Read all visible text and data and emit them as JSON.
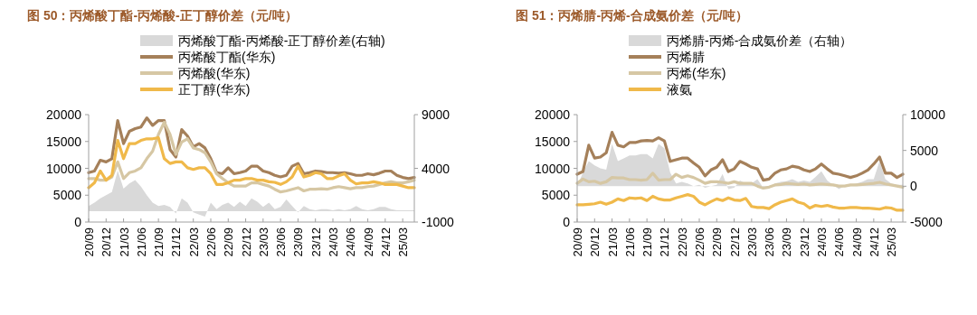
{
  "chart_data": [
    {
      "type": "line",
      "title": "图 50：丙烯酸丁酯-丙烯酸-正丁醇价差（元/吨）",
      "legend": "top",
      "grid": false,
      "categories": [
        "20/09",
        null,
        null,
        "20/12",
        null,
        null,
        "21/03",
        null,
        null,
        "21/06",
        null,
        null,
        "21/09",
        null,
        null,
        "21/12",
        null,
        null,
        "22/03",
        null,
        null,
        "22/06",
        null,
        null,
        "22/09",
        null,
        null,
        "22/12",
        null,
        null,
        "23/03",
        null,
        null,
        "23/06",
        null,
        null,
        "23/09",
        null,
        null,
        "23/12",
        null,
        null,
        "24/03",
        null,
        null,
        "24/06",
        null,
        null,
        "24/09",
        null,
        null,
        "24/12",
        null,
        null,
        "25/03",
        null,
        null
      ],
      "ylim": [
        0,
        20000
      ],
      "yticks": [
        0,
        5000,
        10000,
        15000,
        20000
      ],
      "y2lim": [
        -1000,
        9000
      ],
      "y2ticks": [
        -1000,
        4000,
        9000
      ],
      "series": [
        {
          "name": "丙烯酸丁酯-丙烯酸-正丁醇价差(右轴)",
          "type": "area",
          "axis": "y2",
          "color": "#d9d9d9",
          "values": [
            500,
            800,
            1200,
            1500,
            1800,
            3800,
            2100,
            2600,
            2900,
            2300,
            1500,
            800,
            500,
            600,
            400,
            -200,
            1200,
            800,
            -100,
            -300,
            -500,
            800,
            200,
            600,
            800,
            400,
            900,
            500,
            1200,
            900,
            400,
            800,
            200,
            400,
            1100,
            500,
            -100,
            500,
            200,
            100,
            200,
            200,
            100,
            200,
            100,
            200,
            500,
            200,
            100,
            200,
            400,
            400,
            200,
            100,
            100,
            100,
            100
          ]
        },
        {
          "name": "丙烯酸丁酯(华东)",
          "type": "line",
          "color": "#a5805a",
          "values": [
            9200,
            9500,
            11500,
            11200,
            11800,
            18900,
            14600,
            16900,
            17400,
            17700,
            19400,
            18000,
            18900,
            18900,
            13500,
            12100,
            17200,
            16000,
            14000,
            14600,
            13800,
            11800,
            9200,
            9000,
            10100,
            9000,
            9200,
            9500,
            10400,
            10400,
            9500,
            9200,
            8700,
            8400,
            8700,
            10400,
            10900,
            9000,
            9200,
            9500,
            9400,
            9200,
            9200,
            9100,
            9200,
            9000,
            8700,
            8700,
            9000,
            8800,
            9100,
            9500,
            9500,
            8700,
            8300,
            8100,
            8300
          ]
        },
        {
          "name": "丙烯酸(华东)",
          "type": "line",
          "color": "#d6c7a4",
          "values": [
            8100,
            8100,
            7800,
            7800,
            8400,
            11200,
            8100,
            9200,
            9500,
            10100,
            11800,
            13200,
            16300,
            18600,
            16300,
            12600,
            14900,
            15500,
            13800,
            13500,
            12900,
            11200,
            9000,
            8100,
            7300,
            6700,
            6700,
            6700,
            7300,
            7300,
            7000,
            6700,
            6100,
            5600,
            5800,
            6100,
            6400,
            5800,
            6100,
            6100,
            6200,
            6100,
            6400,
            6600,
            6400,
            6200,
            6400,
            6400,
            6600,
            6700,
            7000,
            7300,
            7500,
            7300,
            7300,
            7500,
            7800
          ]
        },
        {
          "name": "正丁醇(华东)",
          "type": "line",
          "color": "#f0b94a",
          "values": [
            6400,
            7300,
            9500,
            7800,
            8700,
            15200,
            11800,
            14600,
            14600,
            15200,
            15500,
            15500,
            15700,
            11800,
            10900,
            11200,
            11200,
            10100,
            9800,
            10100,
            10100,
            9000,
            7000,
            7000,
            7300,
            7800,
            7800,
            8100,
            8100,
            7800,
            7800,
            7500,
            7400,
            7000,
            7500,
            8400,
            10400,
            8400,
            8700,
            9200,
            9000,
            8100,
            8100,
            8600,
            9000,
            7800,
            7100,
            7300,
            7300,
            7500,
            7300,
            7000,
            7000,
            7000,
            6700,
            6400,
            6400
          ]
        }
      ]
    },
    {
      "type": "line",
      "title": "图 51：丙烯腈-丙烯-合成氨价差（元/吨）",
      "legend": "top",
      "grid": false,
      "categories": [
        "20/09",
        null,
        null,
        "20/12",
        null,
        null,
        "21/03",
        null,
        null,
        "21/06",
        null,
        null,
        "21/09",
        null,
        null,
        "21/12",
        null,
        null,
        "22/03",
        null,
        null,
        "22/06",
        null,
        null,
        "22/09",
        null,
        null,
        "22/12",
        null,
        null,
        "23/03",
        null,
        null,
        "23/06",
        null,
        null,
        "23/09",
        null,
        null,
        "23/12",
        null,
        null,
        "24/03",
        null,
        null,
        "24/06",
        null,
        null,
        "24/09",
        null,
        null,
        "24/12",
        null,
        null,
        "25/03",
        null,
        null
      ],
      "ylim": [
        0,
        20000
      ],
      "yticks": [
        0,
        5000,
        10000,
        15000,
        20000
      ],
      "y2lim": [
        -5000,
        10000
      ],
      "y2ticks": [
        -5000,
        0,
        5000,
        10000
      ],
      "series": [
        {
          "name": "丙烯腈-丙烯-合成氨价差（右轴）",
          "type": "area",
          "axis": "y2",
          "color": "#d9d9d9",
          "values": [
            0,
            1900,
            3500,
            2900,
            2500,
            2300,
            5900,
            3500,
            3900,
            4300,
            4300,
            4500,
            4500,
            3900,
            5900,
            5300,
            1900,
            400,
            600,
            400,
            0,
            200,
            -200,
            0,
            200,
            1700,
            -400,
            -200,
            800,
            400,
            400,
            1000,
            -200,
            -200,
            400,
            600,
            700,
            1000,
            600,
            800,
            600,
            1300,
            2100,
            800,
            200,
            -400,
            0,
            200,
            400,
            600,
            1000,
            1000,
            3500,
            1000,
            400,
            200,
            200
          ]
        },
        {
          "name": "丙烯腈",
          "type": "line",
          "color": "#a5805a",
          "values": [
            8900,
            9400,
            14300,
            11900,
            12100,
            12900,
            16700,
            14300,
            14000,
            14800,
            14800,
            15100,
            15200,
            15100,
            15700,
            15100,
            11300,
            11600,
            11900,
            11900,
            11000,
            10200,
            8600,
            9700,
            10200,
            11600,
            9400,
            9900,
            11300,
            10800,
            10200,
            9900,
            7800,
            8000,
            9100,
            9700,
            9900,
            10400,
            10200,
            9700,
            9400,
            9900,
            10800,
            9900,
            9100,
            8900,
            8600,
            8300,
            8600,
            9100,
            9700,
            10800,
            12100,
            9100,
            9100,
            8300,
            8900
          ]
        },
        {
          "name": "丙烯(华东)",
          "type": "line",
          "color": "#d6c7a4",
          "values": [
            7200,
            8000,
            7500,
            7600,
            7200,
            7500,
            8300,
            8200,
            8200,
            7900,
            7900,
            7800,
            7900,
            9100,
            7800,
            7900,
            7900,
            8900,
            8300,
            8600,
            8300,
            7800,
            7200,
            7500,
            7500,
            7400,
            7200,
            7500,
            7200,
            7200,
            7200,
            6700,
            6300,
            6500,
            6900,
            7000,
            7200,
            7100,
            7000,
            7100,
            6900,
            7000,
            7100,
            7000,
            6900,
            6700,
            6700,
            6900,
            6900,
            7000,
            7100,
            7200,
            7400,
            7100,
            6900,
            6700,
            6500
          ]
        },
        {
          "name": "液氨",
          "type": "line",
          "color": "#f0b94a",
          "values": [
            3200,
            3200,
            3300,
            3400,
            3700,
            3300,
            3700,
            4300,
            4000,
            4500,
            4400,
            4500,
            4000,
            4800,
            4300,
            4100,
            4100,
            4500,
            4800,
            5100,
            4800,
            3700,
            3200,
            3800,
            4300,
            4000,
            4500,
            4100,
            4000,
            4400,
            2900,
            2700,
            2700,
            2500,
            3200,
            3700,
            4000,
            4300,
            3700,
            3400,
            2600,
            3100,
            2900,
            3100,
            2800,
            2600,
            2600,
            2700,
            2700,
            2600,
            2600,
            2500,
            2400,
            2700,
            2600,
            2200,
            2200
          ]
        }
      ]
    }
  ]
}
